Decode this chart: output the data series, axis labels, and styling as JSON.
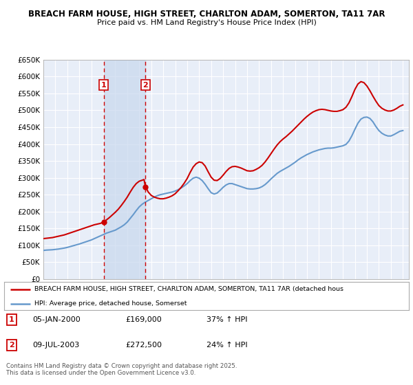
{
  "title_line1": "BREACH FARM HOUSE, HIGH STREET, CHARLTON ADAM, SOMERTON, TA11 7AR",
  "title_line2": "Price paid vs. HM Land Registry's House Price Index (HPI)",
  "ylim": [
    0,
    650000
  ],
  "yticks": [
    0,
    50000,
    100000,
    150000,
    200000,
    250000,
    300000,
    350000,
    400000,
    450000,
    500000,
    550000,
    600000,
    650000
  ],
  "xlim_start": 1995.0,
  "xlim_end": 2025.5,
  "sale1_date": 2000.03,
  "sale1_price": 169000,
  "sale1_label": "05-JAN-2000",
  "sale1_pct": "37% ↑ HPI",
  "sale2_date": 2003.52,
  "sale2_price": 272500,
  "sale2_label": "09-JUL-2003",
  "sale2_pct": "24% ↑ HPI",
  "property_color": "#cc0000",
  "hpi_color": "#6699cc",
  "background_color": "#e8eef8",
  "grid_color": "#ffffff",
  "legend_label1": "BREACH FARM HOUSE, HIGH STREET, CHARLTON ADAM, SOMERTON, TA11 7AR (detached hous",
  "legend_label2": "HPI: Average price, detached house, Somerset",
  "footer": "Contains HM Land Registry data © Crown copyright and database right 2025.\nThis data is licensed under the Open Government Licence v3.0.",
  "hpi_data": [
    [
      1995.0,
      85000
    ],
    [
      1995.25,
      86000
    ],
    [
      1995.5,
      86500
    ],
    [
      1995.75,
      87000
    ],
    [
      1996.0,
      88000
    ],
    [
      1996.25,
      89000
    ],
    [
      1996.5,
      90500
    ],
    [
      1996.75,
      92000
    ],
    [
      1997.0,
      94000
    ],
    [
      1997.25,
      96500
    ],
    [
      1997.5,
      99000
    ],
    [
      1997.75,
      101500
    ],
    [
      1998.0,
      104000
    ],
    [
      1998.25,
      107000
    ],
    [
      1998.5,
      110000
    ],
    [
      1998.75,
      113000
    ],
    [
      1999.0,
      116000
    ],
    [
      1999.25,
      120000
    ],
    [
      1999.5,
      124000
    ],
    [
      1999.75,
      128000
    ],
    [
      2000.0,
      132000
    ],
    [
      2000.25,
      136000
    ],
    [
      2000.5,
      139000
    ],
    [
      2000.75,
      142000
    ],
    [
      2001.0,
      145000
    ],
    [
      2001.25,
      150000
    ],
    [
      2001.5,
      155000
    ],
    [
      2001.75,
      161000
    ],
    [
      2002.0,
      169000
    ],
    [
      2002.25,
      180000
    ],
    [
      2002.5,
      191000
    ],
    [
      2002.75,
      203000
    ],
    [
      2003.0,
      214000
    ],
    [
      2003.25,
      222000
    ],
    [
      2003.5,
      228000
    ],
    [
      2003.75,
      233000
    ],
    [
      2004.0,
      238000
    ],
    [
      2004.25,
      243000
    ],
    [
      2004.5,
      247000
    ],
    [
      2004.75,
      250000
    ],
    [
      2005.0,
      252000
    ],
    [
      2005.25,
      254000
    ],
    [
      2005.5,
      256000
    ],
    [
      2005.75,
      258000
    ],
    [
      2006.0,
      261000
    ],
    [
      2006.25,
      265000
    ],
    [
      2006.5,
      270000
    ],
    [
      2006.75,
      276000
    ],
    [
      2007.0,
      283000
    ],
    [
      2007.25,
      292000
    ],
    [
      2007.5,
      299000
    ],
    [
      2007.75,
      302000
    ],
    [
      2008.0,
      299000
    ],
    [
      2008.25,
      292000
    ],
    [
      2008.5,
      281000
    ],
    [
      2008.75,
      268000
    ],
    [
      2009.0,
      256000
    ],
    [
      2009.25,
      252000
    ],
    [
      2009.5,
      255000
    ],
    [
      2009.75,
      263000
    ],
    [
      2010.0,
      272000
    ],
    [
      2010.25,
      279000
    ],
    [
      2010.5,
      283000
    ],
    [
      2010.75,
      283000
    ],
    [
      2011.0,
      280000
    ],
    [
      2011.25,
      277000
    ],
    [
      2011.5,
      274000
    ],
    [
      2011.75,
      271000
    ],
    [
      2012.0,
      268000
    ],
    [
      2012.25,
      267000
    ],
    [
      2012.5,
      267000
    ],
    [
      2012.75,
      268000
    ],
    [
      2013.0,
      270000
    ],
    [
      2013.25,
      274000
    ],
    [
      2013.5,
      280000
    ],
    [
      2013.75,
      288000
    ],
    [
      2014.0,
      297000
    ],
    [
      2014.25,
      305000
    ],
    [
      2014.5,
      313000
    ],
    [
      2014.75,
      319000
    ],
    [
      2015.0,
      324000
    ],
    [
      2015.25,
      329000
    ],
    [
      2015.5,
      334000
    ],
    [
      2015.75,
      340000
    ],
    [
      2016.0,
      346000
    ],
    [
      2016.25,
      353000
    ],
    [
      2016.5,
      359000
    ],
    [
      2016.75,
      364000
    ],
    [
      2017.0,
      369000
    ],
    [
      2017.25,
      373000
    ],
    [
      2017.5,
      377000
    ],
    [
      2017.75,
      380000
    ],
    [
      2018.0,
      383000
    ],
    [
      2018.25,
      385000
    ],
    [
      2018.5,
      387000
    ],
    [
      2018.75,
      388000
    ],
    [
      2019.0,
      388000
    ],
    [
      2019.25,
      389000
    ],
    [
      2019.5,
      391000
    ],
    [
      2019.75,
      393000
    ],
    [
      2020.0,
      395000
    ],
    [
      2020.25,
      399000
    ],
    [
      2020.5,
      409000
    ],
    [
      2020.75,
      425000
    ],
    [
      2021.0,
      444000
    ],
    [
      2021.25,
      462000
    ],
    [
      2021.5,
      474000
    ],
    [
      2021.75,
      479000
    ],
    [
      2022.0,
      480000
    ],
    [
      2022.25,
      476000
    ],
    [
      2022.5,
      466000
    ],
    [
      2022.75,
      452000
    ],
    [
      2023.0,
      440000
    ],
    [
      2023.25,
      432000
    ],
    [
      2023.5,
      427000
    ],
    [
      2023.75,
      424000
    ],
    [
      2024.0,
      424000
    ],
    [
      2024.25,
      428000
    ],
    [
      2024.5,
      433000
    ],
    [
      2024.75,
      438000
    ],
    [
      2025.0,
      440000
    ]
  ],
  "property_data": [
    [
      1995.0,
      120000
    ],
    [
      1995.25,
      121000
    ],
    [
      1995.5,
      122000
    ],
    [
      1995.75,
      123000
    ],
    [
      1996.0,
      125000
    ],
    [
      1996.25,
      127000
    ],
    [
      1996.5,
      129000
    ],
    [
      1996.75,
      131000
    ],
    [
      1997.0,
      134000
    ],
    [
      1997.25,
      137000
    ],
    [
      1997.5,
      140000
    ],
    [
      1997.75,
      143000
    ],
    [
      1998.0,
      146000
    ],
    [
      1998.25,
      149000
    ],
    [
      1998.5,
      152000
    ],
    [
      1998.75,
      155000
    ],
    [
      1999.0,
      158000
    ],
    [
      1999.25,
      161000
    ],
    [
      1999.5,
      163000
    ],
    [
      1999.75,
      165000
    ],
    [
      2000.03,
      169000
    ],
    [
      2000.25,
      175000
    ],
    [
      2000.5,
      182000
    ],
    [
      2000.75,
      190000
    ],
    [
      2001.0,
      198000
    ],
    [
      2001.25,
      207000
    ],
    [
      2001.5,
      218000
    ],
    [
      2001.75,
      230000
    ],
    [
      2002.0,
      243000
    ],
    [
      2002.25,
      258000
    ],
    [
      2002.5,
      272000
    ],
    [
      2002.75,
      283000
    ],
    [
      2003.0,
      290000
    ],
    [
      2003.25,
      293000
    ],
    [
      2003.4,
      295000
    ],
    [
      2003.52,
      272500
    ],
    [
      2003.65,
      265000
    ],
    [
      2003.75,
      258000
    ],
    [
      2004.0,
      248000
    ],
    [
      2004.25,
      243000
    ],
    [
      2004.5,
      240000
    ],
    [
      2004.75,
      238000
    ],
    [
      2005.0,
      238000
    ],
    [
      2005.25,
      240000
    ],
    [
      2005.5,
      243000
    ],
    [
      2005.75,
      247000
    ],
    [
      2006.0,
      253000
    ],
    [
      2006.25,
      262000
    ],
    [
      2006.5,
      272000
    ],
    [
      2006.75,
      284000
    ],
    [
      2007.0,
      298000
    ],
    [
      2007.25,
      316000
    ],
    [
      2007.5,
      332000
    ],
    [
      2007.75,
      342000
    ],
    [
      2008.0,
      347000
    ],
    [
      2008.25,
      345000
    ],
    [
      2008.5,
      335000
    ],
    [
      2008.75,
      318000
    ],
    [
      2009.0,
      302000
    ],
    [
      2009.25,
      293000
    ],
    [
      2009.5,
      292000
    ],
    [
      2009.75,
      298000
    ],
    [
      2010.0,
      308000
    ],
    [
      2010.25,
      319000
    ],
    [
      2010.5,
      328000
    ],
    [
      2010.75,
      333000
    ],
    [
      2011.0,
      334000
    ],
    [
      2011.25,
      332000
    ],
    [
      2011.5,
      329000
    ],
    [
      2011.75,
      325000
    ],
    [
      2012.0,
      321000
    ],
    [
      2012.25,
      320000
    ],
    [
      2012.5,
      321000
    ],
    [
      2012.75,
      325000
    ],
    [
      2013.0,
      330000
    ],
    [
      2013.25,
      337000
    ],
    [
      2013.5,
      347000
    ],
    [
      2013.75,
      359000
    ],
    [
      2014.0,
      372000
    ],
    [
      2014.25,
      385000
    ],
    [
      2014.5,
      397000
    ],
    [
      2014.75,
      407000
    ],
    [
      2015.0,
      415000
    ],
    [
      2015.25,
      422000
    ],
    [
      2015.5,
      430000
    ],
    [
      2015.75,
      438000
    ],
    [
      2016.0,
      447000
    ],
    [
      2016.25,
      456000
    ],
    [
      2016.5,
      465000
    ],
    [
      2016.75,
      474000
    ],
    [
      2017.0,
      482000
    ],
    [
      2017.25,
      489000
    ],
    [
      2017.5,
      495000
    ],
    [
      2017.75,
      499000
    ],
    [
      2018.0,
      502000
    ],
    [
      2018.25,
      503000
    ],
    [
      2018.5,
      502000
    ],
    [
      2018.75,
      500000
    ],
    [
      2019.0,
      498000
    ],
    [
      2019.25,
      497000
    ],
    [
      2019.5,
      497000
    ],
    [
      2019.75,
      499000
    ],
    [
      2020.0,
      502000
    ],
    [
      2020.25,
      509000
    ],
    [
      2020.5,
      522000
    ],
    [
      2020.75,
      541000
    ],
    [
      2021.0,
      562000
    ],
    [
      2021.25,
      578000
    ],
    [
      2021.5,
      585000
    ],
    [
      2021.75,
      582000
    ],
    [
      2022.0,
      572000
    ],
    [
      2022.25,
      558000
    ],
    [
      2022.5,
      542000
    ],
    [
      2022.75,
      527000
    ],
    [
      2023.0,
      514000
    ],
    [
      2023.25,
      506000
    ],
    [
      2023.5,
      501000
    ],
    [
      2023.75,
      498000
    ],
    [
      2024.0,
      498000
    ],
    [
      2024.25,
      501000
    ],
    [
      2024.5,
      506000
    ],
    [
      2024.75,
      512000
    ],
    [
      2025.0,
      516000
    ]
  ]
}
